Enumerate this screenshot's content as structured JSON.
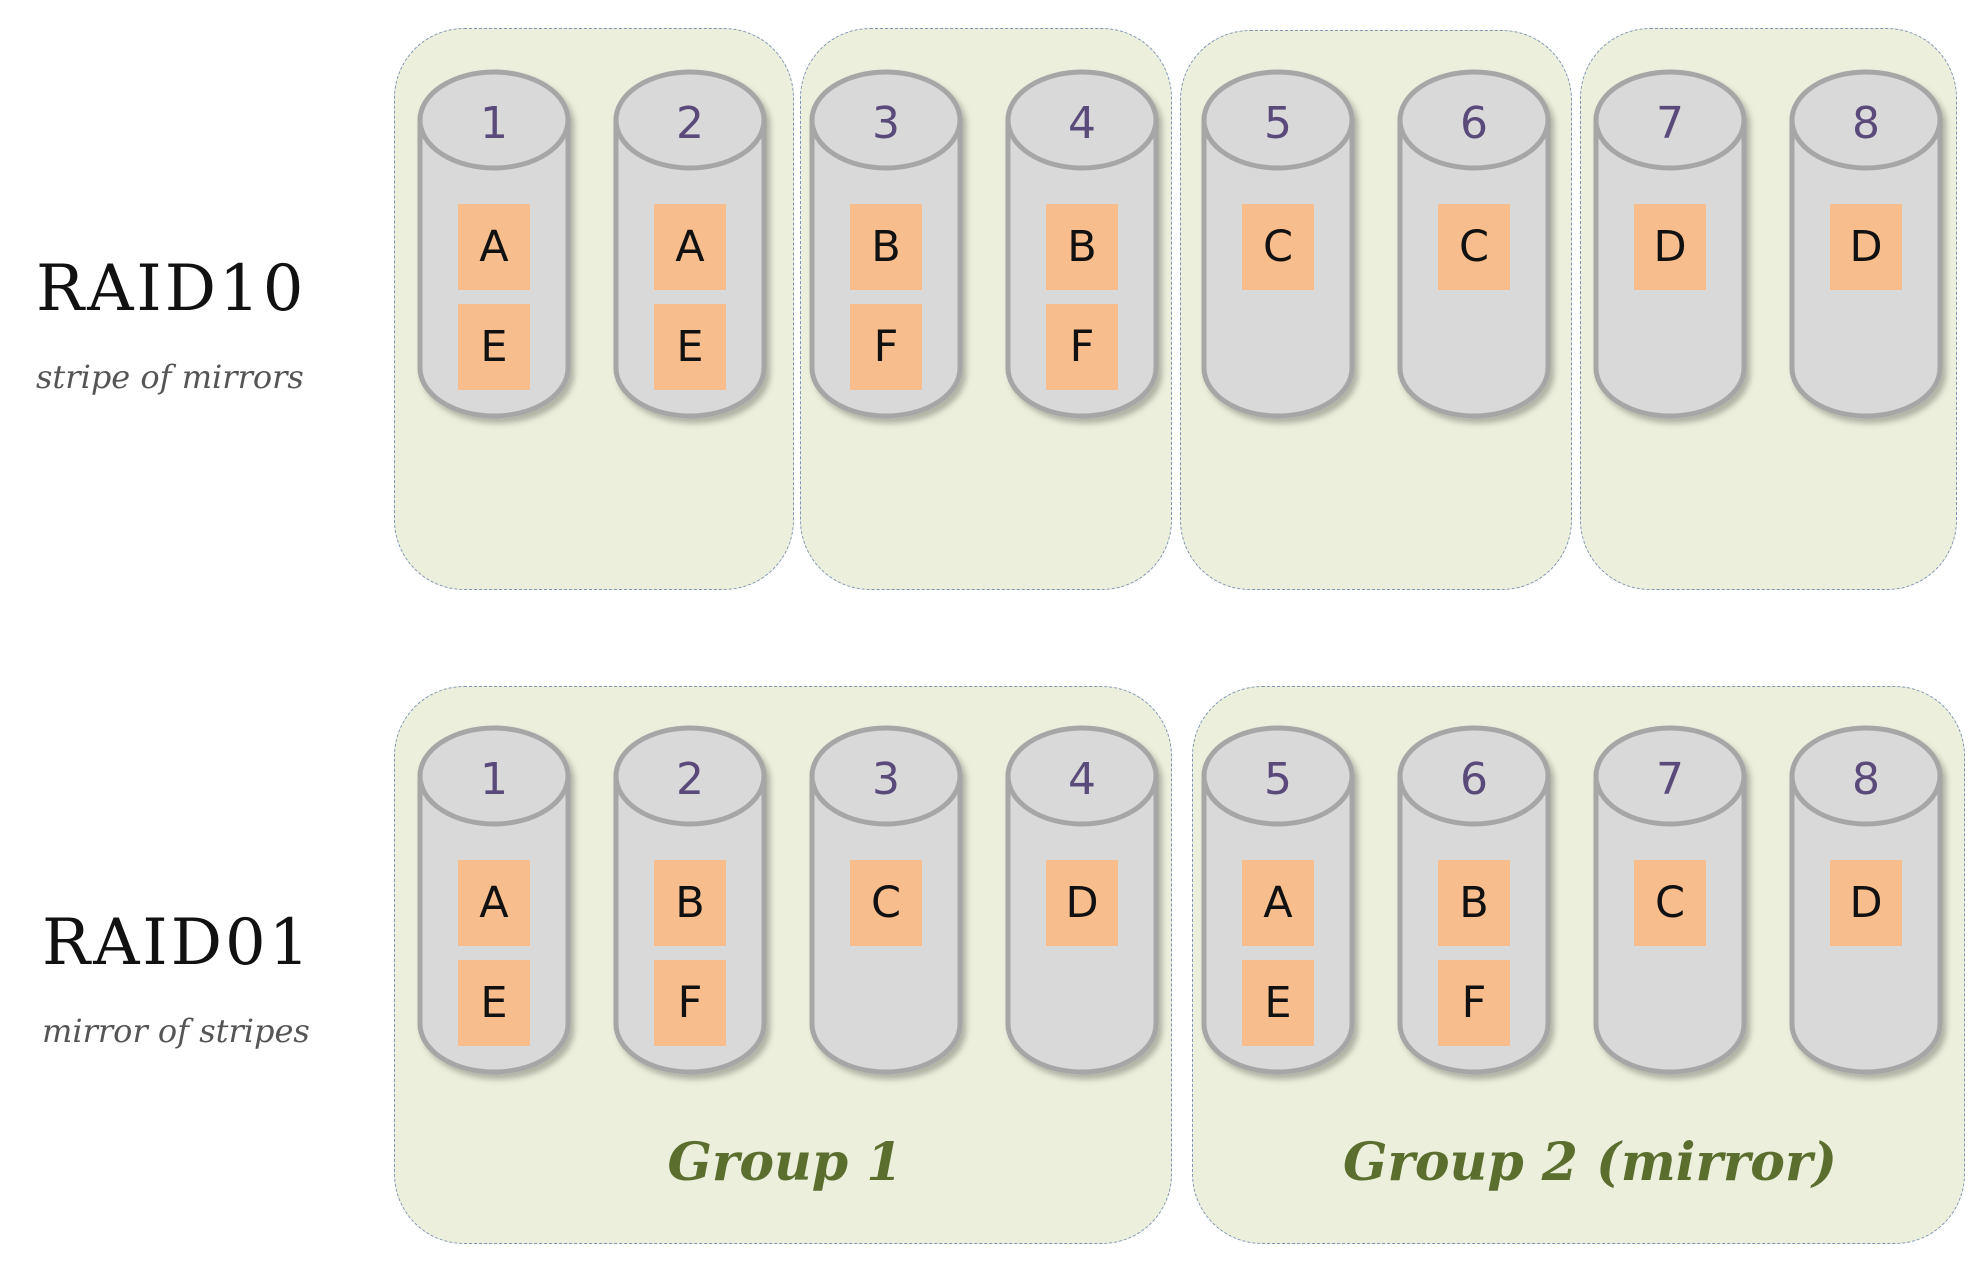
{
  "raid10": {
    "title": "RAID10",
    "subtitle": "stripe of mirrors",
    "disks": [
      {
        "num": "1",
        "blocks": [
          "A",
          "E"
        ]
      },
      {
        "num": "2",
        "blocks": [
          "A",
          "E"
        ]
      },
      {
        "num": "3",
        "blocks": [
          "B",
          "F"
        ]
      },
      {
        "num": "4",
        "blocks": [
          "B",
          "F"
        ]
      },
      {
        "num": "5",
        "blocks": [
          "C"
        ]
      },
      {
        "num": "6",
        "blocks": [
          "C"
        ]
      },
      {
        "num": "7",
        "blocks": [
          "D"
        ]
      },
      {
        "num": "8",
        "blocks": [
          "D"
        ]
      }
    ]
  },
  "raid01": {
    "title": "RAID01",
    "subtitle": "mirror of stripes",
    "disks": [
      {
        "num": "1",
        "blocks": [
          "A",
          "E"
        ]
      },
      {
        "num": "2",
        "blocks": [
          "B",
          "F"
        ]
      },
      {
        "num": "3",
        "blocks": [
          "C"
        ]
      },
      {
        "num": "4",
        "blocks": [
          "D"
        ]
      },
      {
        "num": "5",
        "blocks": [
          "A",
          "E"
        ]
      },
      {
        "num": "6",
        "blocks": [
          "B",
          "F"
        ]
      },
      {
        "num": "7",
        "blocks": [
          "C"
        ]
      },
      {
        "num": "8",
        "blocks": [
          "D"
        ]
      }
    ],
    "groups": [
      {
        "label": "Group 1"
      },
      {
        "label": "Group 2 (mirror)"
      }
    ]
  },
  "colors": {
    "group_fill": "#ebefdb",
    "group_border": "#7f94b6",
    "disk_fill": "#d9d9d9",
    "disk_stroke": "#a6a6a6",
    "block_fill": "#f8bd8c",
    "disk_number": "#5a4a7a",
    "group_label": "#5b6e2e"
  }
}
